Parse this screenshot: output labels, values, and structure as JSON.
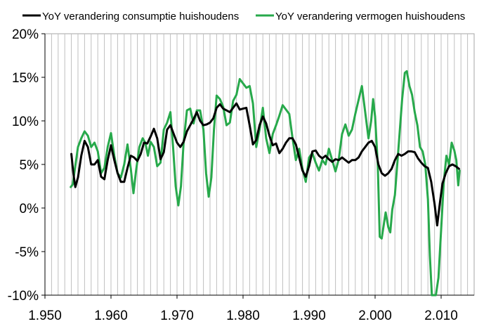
{
  "chart_data": {
    "type": "line",
    "title": "",
    "xlabel": "",
    "ylabel": "",
    "xlim": [
      1950,
      2015
    ],
    "ylim": [
      -10,
      20
    ],
    "x_ticks": [
      1950,
      1960,
      1970,
      1980,
      1990,
      2000,
      2010
    ],
    "x_tick_labels": [
      "1.950",
      "1.960",
      "1.970",
      "1.980",
      "1.990",
      "2.000",
      "2.010"
    ],
    "y_ticks": [
      -10,
      -5,
      0,
      5,
      10,
      15,
      20
    ],
    "y_tick_labels": [
      "-10%",
      "-5%",
      "0%",
      "5%",
      "10%",
      "15%",
      "20%"
    ],
    "grid": "vertical every year",
    "legend_position": "top",
    "series": [
      {
        "name": "YoY verandering consumptie huishoudens",
        "color": "#000000",
        "points": [
          [
            1954.0,
            6.2
          ],
          [
            1954.3,
            4.0
          ],
          [
            1954.6,
            2.4
          ],
          [
            1955.0,
            3.5
          ],
          [
            1955.5,
            6.0
          ],
          [
            1956.0,
            7.7
          ],
          [
            1956.5,
            7.0
          ],
          [
            1957.0,
            5.0
          ],
          [
            1957.5,
            5.0
          ],
          [
            1958.0,
            5.5
          ],
          [
            1958.5,
            3.6
          ],
          [
            1959.0,
            3.3
          ],
          [
            1959.5,
            5.5
          ],
          [
            1960.0,
            7.2
          ],
          [
            1960.5,
            5.5
          ],
          [
            1961.0,
            4.0
          ],
          [
            1961.5,
            3.0
          ],
          [
            1962.0,
            3.0
          ],
          [
            1962.5,
            4.6
          ],
          [
            1963.0,
            6.0
          ],
          [
            1963.5,
            5.8
          ],
          [
            1964.0,
            5.4
          ],
          [
            1964.5,
            6.2
          ],
          [
            1965.0,
            7.5
          ],
          [
            1965.5,
            7.4
          ],
          [
            1966.0,
            8.2
          ],
          [
            1966.5,
            9.1
          ],
          [
            1967.0,
            8.0
          ],
          [
            1967.5,
            5.6
          ],
          [
            1968.0,
            6.4
          ],
          [
            1968.5,
            9.0
          ],
          [
            1969.0,
            9.5
          ],
          [
            1969.5,
            8.5
          ],
          [
            1970.0,
            7.5
          ],
          [
            1970.5,
            7.0
          ],
          [
            1971.0,
            7.6
          ],
          [
            1971.5,
            8.8
          ],
          [
            1972.0,
            9.5
          ],
          [
            1972.5,
            10.2
          ],
          [
            1973.0,
            11.0
          ],
          [
            1973.5,
            10.0
          ],
          [
            1974.0,
            9.5
          ],
          [
            1974.5,
            9.6
          ],
          [
            1975.0,
            9.8
          ],
          [
            1975.5,
            10.3
          ],
          [
            1976.0,
            11.5
          ],
          [
            1976.5,
            11.9
          ],
          [
            1977.0,
            11.4
          ],
          [
            1977.5,
            11.2
          ],
          [
            1978.0,
            11.0
          ],
          [
            1978.5,
            11.5
          ],
          [
            1979.0,
            12.0
          ],
          [
            1979.5,
            11.3
          ],
          [
            1980.0,
            11.4
          ],
          [
            1980.5,
            11.5
          ],
          [
            1981.0,
            9.5
          ],
          [
            1981.5,
            7.3
          ],
          [
            1982.0,
            7.8
          ],
          [
            1982.5,
            9.5
          ],
          [
            1983.0,
            10.5
          ],
          [
            1983.5,
            9.7
          ],
          [
            1984.0,
            8.3
          ],
          [
            1984.5,
            7.2
          ],
          [
            1985.0,
            7.4
          ],
          [
            1985.5,
            6.3
          ],
          [
            1986.0,
            6.8
          ],
          [
            1986.5,
            7.5
          ],
          [
            1987.0,
            8.0
          ],
          [
            1987.5,
            8.0
          ],
          [
            1988.0,
            7.3
          ],
          [
            1988.5,
            5.8
          ],
          [
            1989.0,
            4.3
          ],
          [
            1989.5,
            3.6
          ],
          [
            1990.0,
            4.8
          ],
          [
            1990.5,
            6.5
          ],
          [
            1991.0,
            6.6
          ],
          [
            1991.5,
            6.0
          ],
          [
            1992.0,
            5.7
          ],
          [
            1992.5,
            6.0
          ],
          [
            1993.0,
            5.6
          ],
          [
            1993.5,
            5.3
          ],
          [
            1994.0,
            5.6
          ],
          [
            1994.5,
            5.5
          ],
          [
            1995.0,
            5.8
          ],
          [
            1995.5,
            5.5
          ],
          [
            1996.0,
            5.2
          ],
          [
            1996.5,
            5.5
          ],
          [
            1997.0,
            5.5
          ],
          [
            1997.5,
            5.8
          ],
          [
            1998.0,
            6.5
          ],
          [
            1998.5,
            7.0
          ],
          [
            1999.0,
            7.5
          ],
          [
            1999.5,
            7.7
          ],
          [
            2000.0,
            7.0
          ],
          [
            2000.5,
            5.0
          ],
          [
            2001.0,
            4.0
          ],
          [
            2001.5,
            3.7
          ],
          [
            2002.0,
            4.0
          ],
          [
            2002.5,
            4.5
          ],
          [
            2003.0,
            5.5
          ],
          [
            2003.5,
            6.2
          ],
          [
            2004.0,
            6.0
          ],
          [
            2004.5,
            6.2
          ],
          [
            2005.0,
            6.5
          ],
          [
            2005.5,
            6.5
          ],
          [
            2006.0,
            6.4
          ],
          [
            2006.5,
            5.7
          ],
          [
            2007.0,
            5.2
          ],
          [
            2007.5,
            4.8
          ],
          [
            2008.0,
            4.6
          ],
          [
            2008.5,
            3.0
          ],
          [
            2009.0,
            0.5
          ],
          [
            2009.4,
            -2.0
          ],
          [
            2009.8,
            0.5
          ],
          [
            2010.2,
            2.8
          ],
          [
            2010.7,
            4.0
          ],
          [
            2011.2,
            4.8
          ],
          [
            2011.7,
            5.0
          ],
          [
            2012.2,
            4.8
          ],
          [
            2012.7,
            4.5
          ]
        ]
      },
      {
        "name": "YoY verandering vermogen huishoudens",
        "color": "#27a94b",
        "points": [
          [
            1953.9,
            2.4
          ],
          [
            1954.2,
            2.7
          ],
          [
            1954.5,
            4.3
          ],
          [
            1955.0,
            7.0
          ],
          [
            1955.5,
            8.0
          ],
          [
            1956.0,
            8.8
          ],
          [
            1956.5,
            8.3
          ],
          [
            1957.0,
            7.0
          ],
          [
            1957.5,
            7.5
          ],
          [
            1958.0,
            6.5
          ],
          [
            1958.5,
            4.0
          ],
          [
            1959.0,
            4.6
          ],
          [
            1959.5,
            7.0
          ],
          [
            1960.0,
            8.6
          ],
          [
            1960.5,
            6.0
          ],
          [
            1961.0,
            4.0
          ],
          [
            1961.5,
            3.5
          ],
          [
            1962.0,
            5.0
          ],
          [
            1962.5,
            7.3
          ],
          [
            1963.0,
            4.5
          ],
          [
            1963.4,
            1.7
          ],
          [
            1963.8,
            4.3
          ],
          [
            1964.3,
            7.0
          ],
          [
            1964.8,
            8.0
          ],
          [
            1965.2,
            7.5
          ],
          [
            1965.6,
            6.0
          ],
          [
            1966.0,
            7.6
          ],
          [
            1966.5,
            7.0
          ],
          [
            1967.0,
            4.8
          ],
          [
            1967.5,
            5.2
          ],
          [
            1968.0,
            9.0
          ],
          [
            1968.5,
            9.8
          ],
          [
            1969.0,
            11.0
          ],
          [
            1969.4,
            7.0
          ],
          [
            1969.8,
            2.5
          ],
          [
            1970.2,
            0.3
          ],
          [
            1970.6,
            2.5
          ],
          [
            1971.0,
            7.5
          ],
          [
            1971.5,
            11.2
          ],
          [
            1972.0,
            11.4
          ],
          [
            1972.5,
            9.7
          ],
          [
            1973.0,
            11.2
          ],
          [
            1973.5,
            11.2
          ],
          [
            1974.0,
            9.0
          ],
          [
            1974.4,
            4.0
          ],
          [
            1974.8,
            1.3
          ],
          [
            1975.2,
            3.5
          ],
          [
            1975.6,
            9.0
          ],
          [
            1976.0,
            12.9
          ],
          [
            1976.5,
            12.5
          ],
          [
            1977.0,
            11.6
          ],
          [
            1977.5,
            9.5
          ],
          [
            1978.0,
            9.8
          ],
          [
            1978.5,
            12.3
          ],
          [
            1979.0,
            13.0
          ],
          [
            1979.5,
            14.8
          ],
          [
            1980.0,
            14.3
          ],
          [
            1980.5,
            13.8
          ],
          [
            1981.0,
            14.0
          ],
          [
            1981.5,
            12.0
          ],
          [
            1982.0,
            7.0
          ],
          [
            1982.5,
            9.0
          ],
          [
            1983.0,
            11.5
          ],
          [
            1983.5,
            8.0
          ],
          [
            1984.0,
            6.3
          ],
          [
            1984.5,
            8.5
          ],
          [
            1985.0,
            9.5
          ],
          [
            1985.5,
            10.6
          ],
          [
            1986.0,
            11.8
          ],
          [
            1986.5,
            11.3
          ],
          [
            1987.0,
            10.8
          ],
          [
            1987.5,
            8.0
          ],
          [
            1988.0,
            5.5
          ],
          [
            1988.5,
            6.8
          ],
          [
            1989.0,
            4.5
          ],
          [
            1989.5,
            3.0
          ],
          [
            1990.0,
            5.8
          ],
          [
            1990.5,
            6.3
          ],
          [
            1991.0,
            5.2
          ],
          [
            1991.5,
            4.3
          ],
          [
            1992.0,
            5.5
          ],
          [
            1992.5,
            5.0
          ],
          [
            1993.0,
            6.8
          ],
          [
            1993.5,
            5.5
          ],
          [
            1994.0,
            4.2
          ],
          [
            1994.5,
            5.6
          ],
          [
            1995.0,
            8.5
          ],
          [
            1995.5,
            9.6
          ],
          [
            1996.0,
            8.3
          ],
          [
            1996.5,
            9.0
          ],
          [
            1997.0,
            10.8
          ],
          [
            1997.5,
            12.4
          ],
          [
            1998.0,
            14.0
          ],
          [
            1998.5,
            11.0
          ],
          [
            1999.0,
            8.0
          ],
          [
            1999.4,
            10.0
          ],
          [
            1999.7,
            12.5
          ],
          [
            2000.0,
            10.5
          ],
          [
            2000.4,
            5.0
          ],
          [
            2000.7,
            -3.3
          ],
          [
            2001.0,
            -3.5
          ],
          [
            2001.3,
            -2.0
          ],
          [
            2001.6,
            -0.5
          ],
          [
            2002.0,
            -2.2
          ],
          [
            2002.3,
            -2.8
          ],
          [
            2002.6,
            -0.2
          ],
          [
            2003.0,
            1.5
          ],
          [
            2003.4,
            5.5
          ],
          [
            2003.7,
            8.5
          ],
          [
            2004.1,
            12.5
          ],
          [
            2004.5,
            15.5
          ],
          [
            2004.8,
            15.7
          ],
          [
            2005.2,
            14.0
          ],
          [
            2005.6,
            13.0
          ],
          [
            2006.0,
            11.0
          ],
          [
            2006.4,
            9.5
          ],
          [
            2006.8,
            7.0
          ],
          [
            2007.2,
            6.5
          ],
          [
            2007.6,
            5.0
          ],
          [
            2008.0,
            1.0
          ],
          [
            2008.3,
            -5.5
          ],
          [
            2008.6,
            -10.0
          ],
          [
            2008.9,
            -10.0
          ],
          [
            2009.2,
            -10.0
          ],
          [
            2009.6,
            -8.0
          ],
          [
            2010.0,
            -2.5
          ],
          [
            2010.4,
            3.0
          ],
          [
            2010.8,
            6.0
          ],
          [
            2011.2,
            5.0
          ],
          [
            2011.6,
            7.5
          ],
          [
            2012.0,
            6.6
          ],
          [
            2012.3,
            5.5
          ],
          [
            2012.6,
            2.6
          ],
          [
            2012.8,
            4.3
          ]
        ]
      }
    ]
  }
}
